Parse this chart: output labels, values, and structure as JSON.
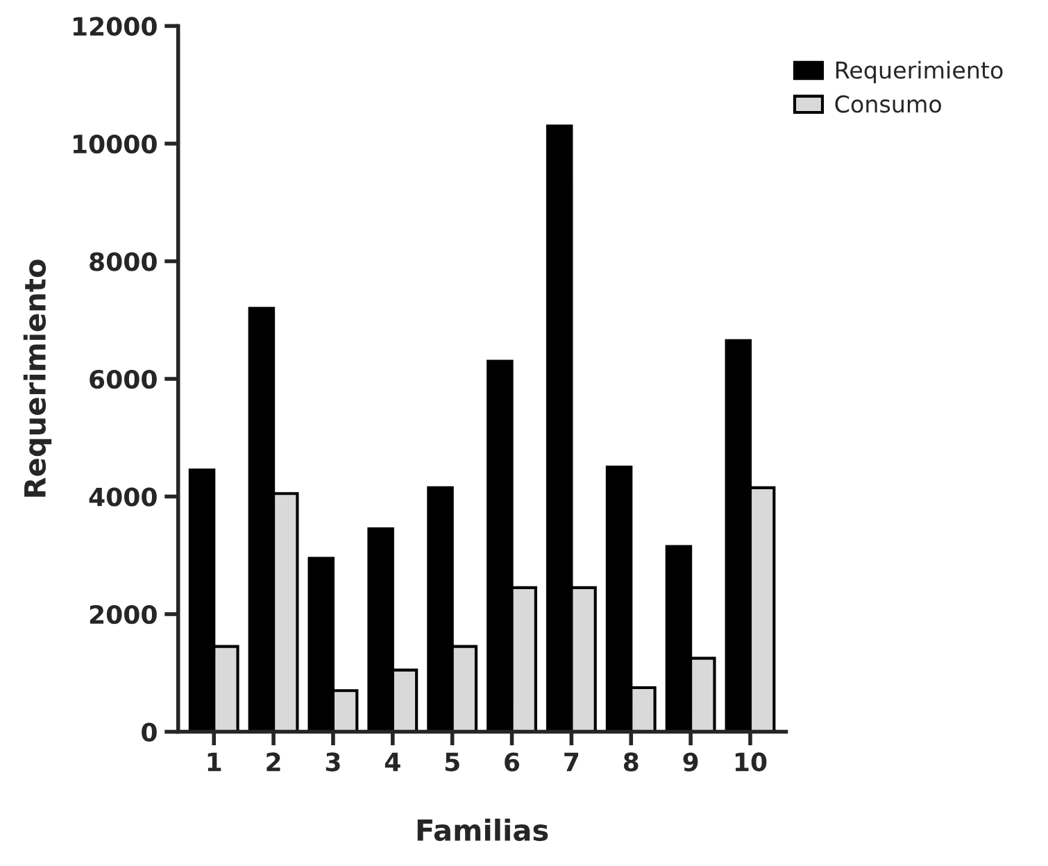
{
  "chart_data": {
    "type": "bar",
    "xlabel": "Familias",
    "ylabel": "Requerimiento",
    "categories": [
      "1",
      "2",
      "3",
      "4",
      "5",
      "6",
      "7",
      "8",
      "9",
      "10"
    ],
    "series": [
      {
        "name": "Requerimiento",
        "color": "#000000",
        "values": [
          4450,
          7200,
          2950,
          3450,
          4150,
          6300,
          10300,
          4500,
          3150,
          6650
        ]
      },
      {
        "name": "Consumo",
        "color": "#d9d9d9",
        "values": [
          1450,
          4050,
          700,
          1050,
          1450,
          2450,
          2450,
          750,
          1250,
          4150
        ]
      }
    ],
    "ylim": [
      0,
      12000
    ],
    "yticks": [
      0,
      2000,
      4000,
      6000,
      8000,
      10000,
      12000
    ],
    "grid": false,
    "legend": "top right"
  }
}
